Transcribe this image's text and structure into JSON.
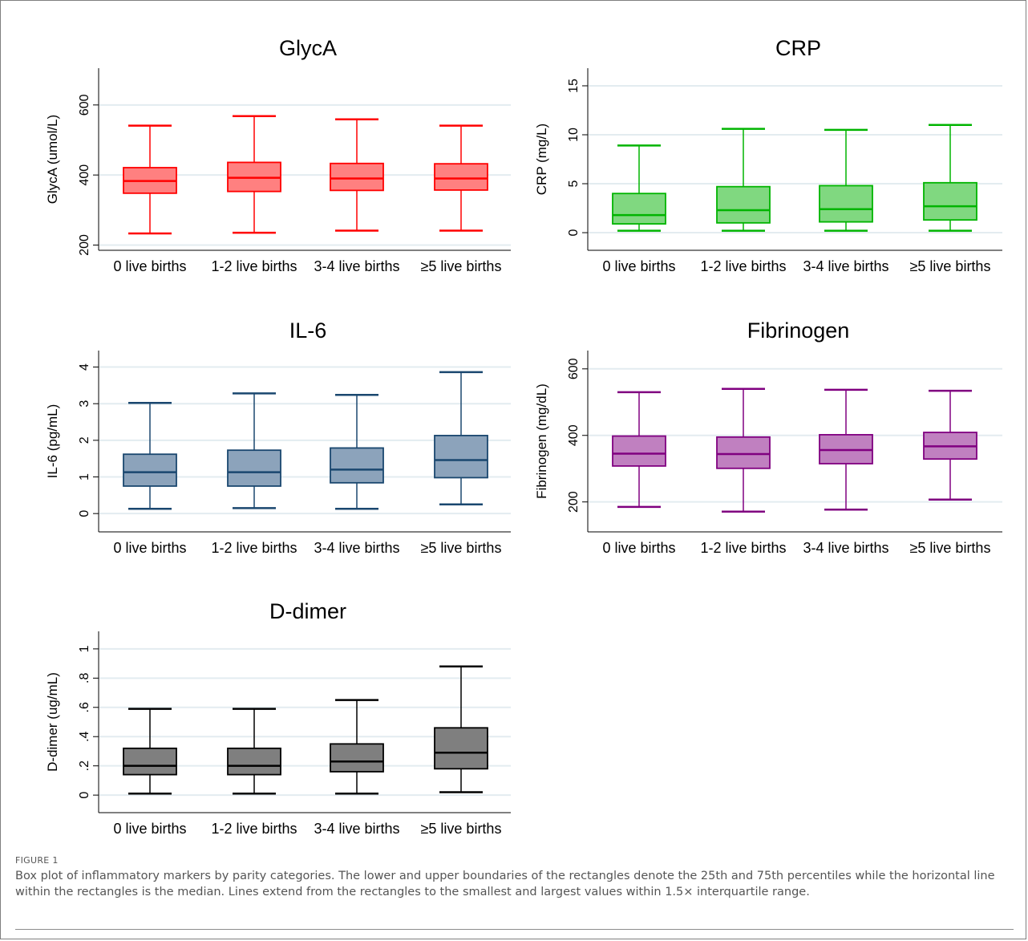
{
  "figure": {
    "label": "FIGURE 1",
    "caption": "Box plot of inflammatory markers by parity categories. The lower and upper boundaries of the rectangles denote the 25th and 75th percentiles while the horizontal line within the rectangles is the median. Lines extend from the rectangles to the smallest and largest values within 1.5× interquartile range."
  },
  "chart_data": [
    {
      "type": "box",
      "title": "GlycA",
      "ylabel": "GlycA (umol/L)",
      "categories": [
        "0 live births",
        "1-2 live births",
        "3-4 live births",
        "≥5 live births"
      ],
      "ylim": [
        185,
        705
      ],
      "yticks": [
        200,
        400,
        600
      ],
      "ytick_labels": [
        "200",
        "400",
        "600"
      ],
      "grid": true,
      "stroke": "#ff0000",
      "fill": "#ff8080",
      "boxes": [
        {
          "min": 233,
          "q1": 348,
          "median": 383,
          "q3": 421,
          "max": 541
        },
        {
          "min": 235,
          "q1": 353,
          "median": 392,
          "q3": 436,
          "max": 568
        },
        {
          "min": 241,
          "q1": 356,
          "median": 390,
          "q3": 433,
          "max": 559
        },
        {
          "min": 241,
          "q1": 357,
          "median": 390,
          "q3": 432,
          "max": 541
        }
      ]
    },
    {
      "type": "box",
      "title": "CRP",
      "ylabel": "CRP (mg/L)",
      "categories": [
        "0 live births",
        "1-2 live births",
        "3-4 live births",
        "≥5 live births"
      ],
      "ylim": [
        -1.8,
        16.8
      ],
      "yticks": [
        0,
        5,
        10,
        15
      ],
      "ytick_labels": [
        "0",
        "5",
        "10",
        "15"
      ],
      "grid": true,
      "stroke": "#00b400",
      "fill": "#80d880",
      "boxes": [
        {
          "min": 0.2,
          "q1": 0.9,
          "median": 1.8,
          "q3": 4.0,
          "max": 8.9
        },
        {
          "min": 0.2,
          "q1": 1.0,
          "median": 2.3,
          "q3": 4.7,
          "max": 10.6
        },
        {
          "min": 0.2,
          "q1": 1.1,
          "median": 2.4,
          "q3": 4.8,
          "max": 10.5
        },
        {
          "min": 0.2,
          "q1": 1.3,
          "median": 2.7,
          "q3": 5.1,
          "max": 11.0
        }
      ]
    },
    {
      "type": "box",
      "title": "IL-6",
      "ylabel": "IL-6 (pg/mL)",
      "categories": [
        "0 live births",
        "1-2 live births",
        "3-4 live births",
        "≥5 live births"
      ],
      "ylim": [
        -0.5,
        4.45
      ],
      "yticks": [
        0,
        1,
        2,
        3,
        4
      ],
      "ytick_labels": [
        "0",
        "1",
        "2",
        "3",
        "4"
      ],
      "grid": true,
      "stroke": "#1a476f",
      "fill": "#8ca3bb",
      "boxes": [
        {
          "min": 0.13,
          "q1": 0.75,
          "median": 1.13,
          "q3": 1.62,
          "max": 3.02
        },
        {
          "min": 0.15,
          "q1": 0.75,
          "median": 1.13,
          "q3": 1.73,
          "max": 3.28
        },
        {
          "min": 0.13,
          "q1": 0.84,
          "median": 1.2,
          "q3": 1.79,
          "max": 3.24
        },
        {
          "min": 0.25,
          "q1": 0.98,
          "median": 1.46,
          "q3": 2.13,
          "max": 3.86
        }
      ]
    },
    {
      "type": "box",
      "title": "Fibrinogen",
      "ylabel": "Fibrinogen (mg/dL)",
      "categories": [
        "0 live births",
        "1-2 live births",
        "3-4 live births",
        "≥5 live births"
      ],
      "ylim": [
        110,
        655
      ],
      "yticks": [
        200,
        400,
        600
      ],
      "ytick_labels": [
        "200",
        "400",
        "600"
      ],
      "grid": true,
      "stroke": "#800080",
      "fill": "#c080c0",
      "boxes": [
        {
          "min": 185,
          "q1": 308,
          "median": 345,
          "q3": 398,
          "max": 530
        },
        {
          "min": 171,
          "q1": 301,
          "median": 344,
          "q3": 395,
          "max": 540
        },
        {
          "min": 177,
          "q1": 315,
          "median": 356,
          "q3": 402,
          "max": 537
        },
        {
          "min": 207,
          "q1": 329,
          "median": 367,
          "q3": 409,
          "max": 534
        }
      ]
    },
    {
      "type": "box",
      "title": "D-dimer",
      "ylabel": "D-dimer (ug/mL)",
      "categories": [
        "0 live births",
        "1-2 live births",
        "3-4 live births",
        "≥5 live births"
      ],
      "ylim": [
        -0.12,
        1.12
      ],
      "yticks": [
        0,
        0.2,
        0.4,
        0.6,
        0.8,
        1
      ],
      "ytick_labels": [
        "0",
        ".2",
        ".4",
        ".6",
        ".8",
        "1"
      ],
      "grid": true,
      "stroke": "#000000",
      "fill": "#7f7f7f",
      "boxes": [
        {
          "min": 0.01,
          "q1": 0.14,
          "median": 0.2,
          "q3": 0.32,
          "max": 0.59
        },
        {
          "min": 0.01,
          "q1": 0.14,
          "median": 0.2,
          "q3": 0.32,
          "max": 0.59
        },
        {
          "min": 0.01,
          "q1": 0.16,
          "median": 0.23,
          "q3": 0.35,
          "max": 0.65
        },
        {
          "min": 0.02,
          "q1": 0.18,
          "median": 0.29,
          "q3": 0.46,
          "max": 0.88
        }
      ]
    }
  ]
}
